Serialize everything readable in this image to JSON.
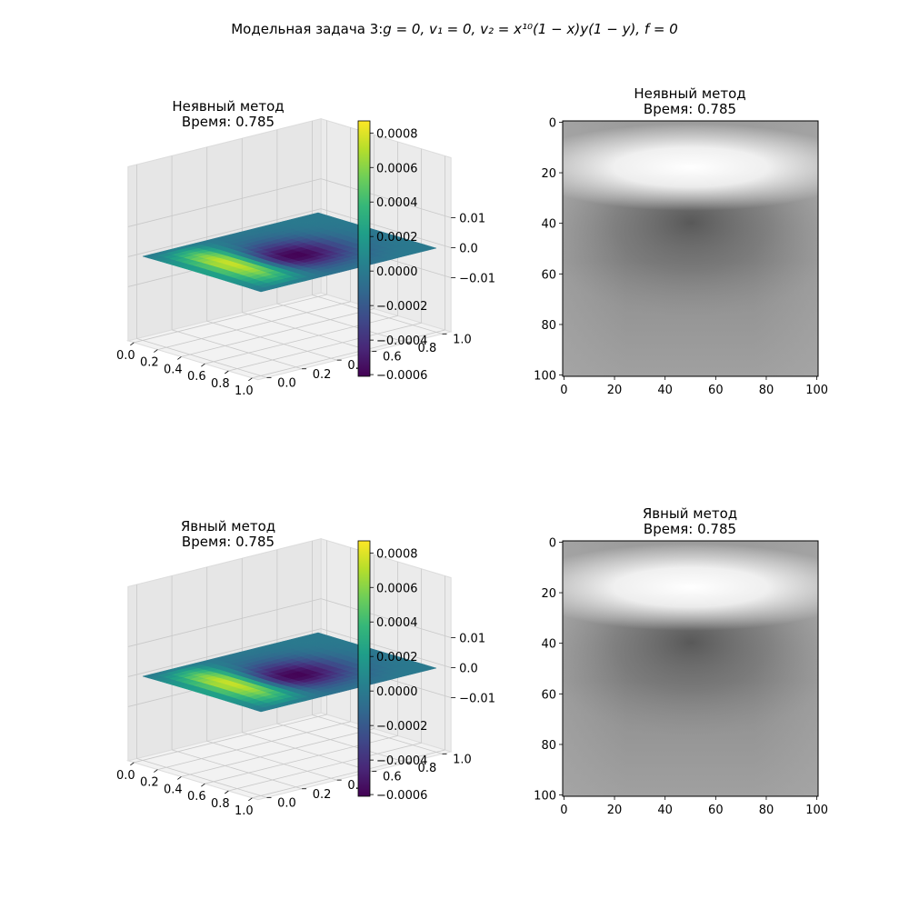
{
  "figure_title": "Модельная задача 3:g = 0, v₁ = 0, v₂ = x¹⁰(1 − x)y(1 − y), f = 0",
  "title_parts": {
    "prefix": "Модельная задача 3:",
    "math": "g = 0, v₁ = 0, v₂ = x¹⁰(1 − x)y(1 − y), f = 0"
  },
  "colors": {
    "viridis": [
      "#440154",
      "#482878",
      "#3e4989",
      "#31688e",
      "#26828e",
      "#1f9e89",
      "#35b779",
      "#6ece58",
      "#b5de2b",
      "#fde725"
    ],
    "pane_face": "#f2f2f2",
    "grid": "#c8c8c8",
    "axis": "#000000"
  },
  "chart_data": [
    {
      "type": "surface3d",
      "title_line1": "Неявный метод",
      "title_line2": "Время: 0.785",
      "x_ticks": [
        "0.0",
        "0.2",
        "0.4",
        "0.6",
        "0.8",
        "1.0"
      ],
      "y_ticks": [
        "0.0",
        "0.2",
        "0.4",
        "0.6",
        "0.8",
        "1.0"
      ],
      "z_ticks": [
        "-0.01",
        "0.00",
        "0.01"
      ],
      "z_ticks_visible": [
        "0.01",
        "0.0",
        "−0.01"
      ],
      "colorbar_ticks": [
        "0.0008",
        "0.0006",
        "0.0004",
        "0.0002",
        "0.0000",
        "−0.0002",
        "−0.0004",
        "−0.0006"
      ],
      "colorbar_range": [
        -0.00061,
        0.00087
      ],
      "colormap": "viridis"
    },
    {
      "type": "heatmap",
      "title_line1": "Неявный метод",
      "title_line2": "Время: 0.785",
      "x_ticks": [
        "0",
        "20",
        "40",
        "60",
        "80",
        "100"
      ],
      "y_ticks": [
        "0",
        "20",
        "40",
        "60",
        "80",
        "100"
      ],
      "xlim": [
        0,
        100
      ],
      "ylim": [
        100,
        0
      ],
      "colormap": "gray"
    },
    {
      "type": "surface3d",
      "title_line1": "Явный метод",
      "title_line2": "Время: 0.785",
      "x_ticks": [
        "0.0",
        "0.2",
        "0.4",
        "0.6",
        "0.8",
        "1.0"
      ],
      "y_ticks": [
        "0.0",
        "0.2",
        "0.4",
        "0.6",
        "0.8",
        "1.0"
      ],
      "z_ticks_visible": [
        "0.01",
        "0.0",
        "−0.01"
      ],
      "colorbar_ticks": [
        "0.0008",
        "0.0006",
        "0.0004",
        "0.0002",
        "0.0000",
        "−0.0002",
        "−0.0004",
        "−0.0006"
      ],
      "colorbar_range": [
        -0.00061,
        0.00087
      ],
      "colormap": "viridis"
    },
    {
      "type": "heatmap",
      "title_line1": "Явный метод",
      "title_line2": "Время: 0.785",
      "x_ticks": [
        "0",
        "20",
        "40",
        "60",
        "80",
        "100"
      ],
      "y_ticks": [
        "0",
        "20",
        "40",
        "60",
        "80",
        "100"
      ],
      "xlim": [
        0,
        100
      ],
      "ylim": [
        100,
        0
      ],
      "colormap": "gray"
    }
  ]
}
